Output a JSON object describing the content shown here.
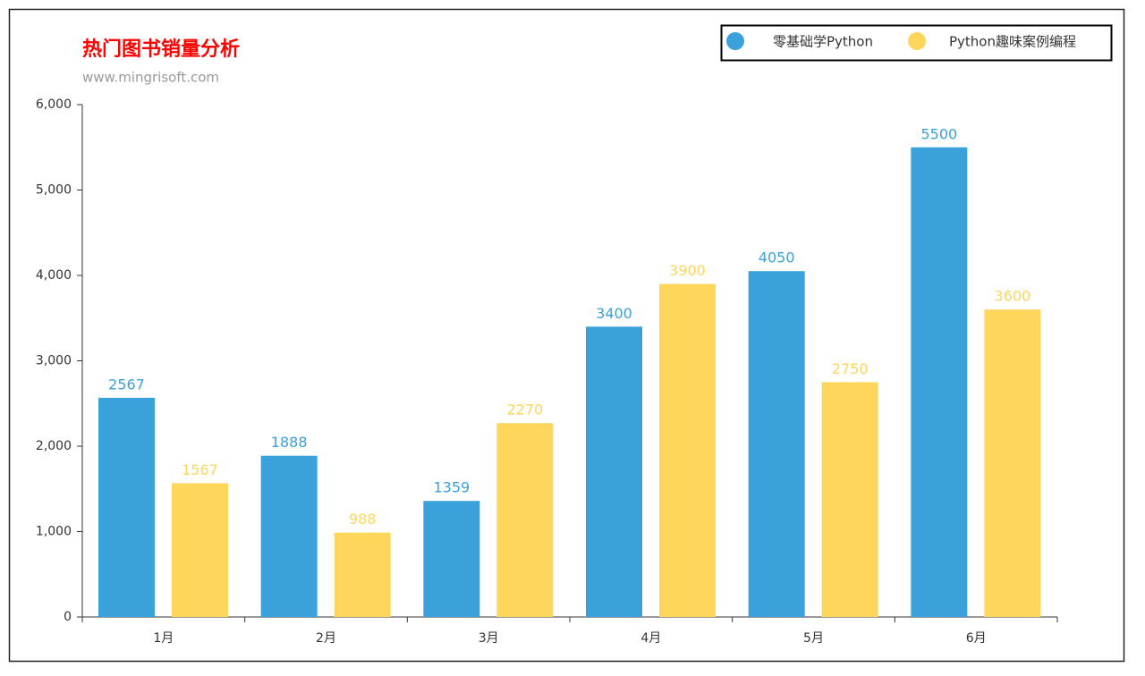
{
  "chart_data": {
    "type": "bar",
    "title": "热门图书销量分析",
    "subtitle": "www.mingrisoft.com",
    "categories": [
      "1月",
      "2月",
      "3月",
      "4月",
      "5月",
      "6月"
    ],
    "series": [
      {
        "name": "零基础学Python",
        "color": "#3ba1da",
        "values": [
          2567,
          1888,
          1359,
          3400,
          4050,
          5500
        ]
      },
      {
        "name": "Python趣味案例编程",
        "color": "#fed65c",
        "values": [
          1567,
          988,
          2270,
          3900,
          2750,
          3600
        ]
      }
    ],
    "ylim": [
      0,
      6000
    ],
    "yticks": [
      0,
      {
        "value": 1000,
        "label": "1,000"
      },
      {
        "value": 2000,
        "label": "2,000"
      },
      {
        "value": 3000,
        "label": "3,000"
      },
      {
        "value": 4000,
        "label": "4,000"
      },
      {
        "value": 5000,
        "label": "5,000"
      },
      {
        "value": 6000,
        "label": "6,000"
      }
    ],
    "legend_position": "top-right",
    "title_color": "#ff0000"
  }
}
